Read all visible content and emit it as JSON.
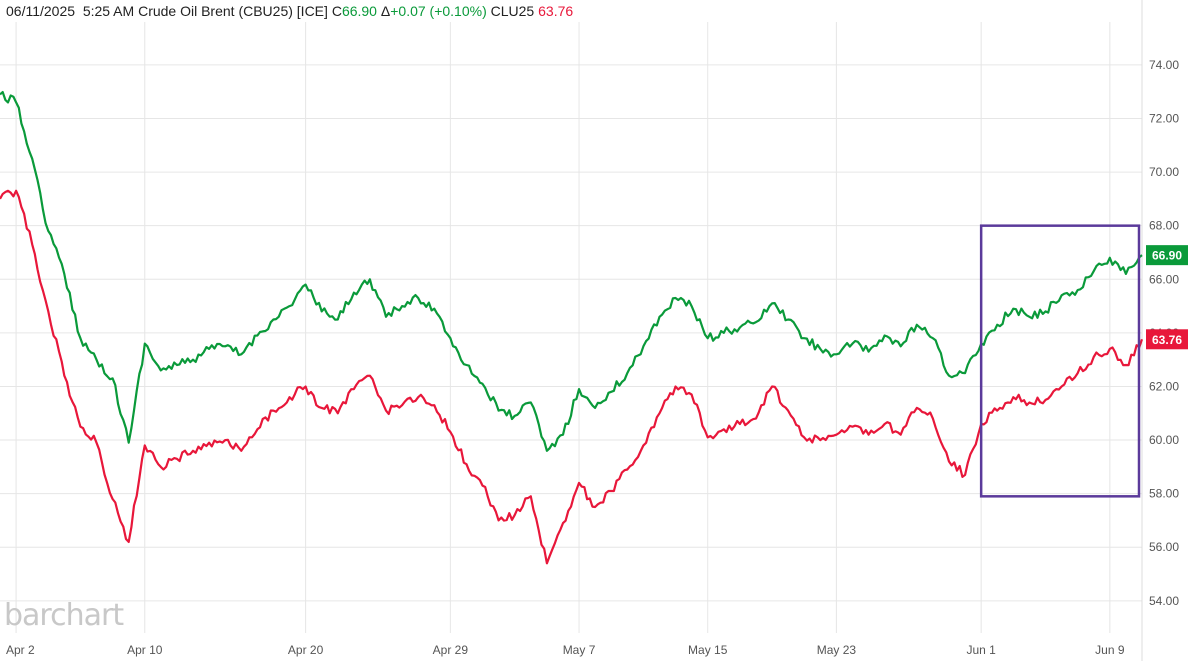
{
  "header": {
    "date": "06/11/2025",
    "time": "5:25 AM",
    "instrument": "Crude Oil Brent (CBU25) [ICE]",
    "close_label": "C",
    "close_value": "66.90",
    "change_label": "Δ",
    "change_value": "+0.07 (+0.10%)",
    "compare_symbol": "CLU25",
    "compare_value": "63.76"
  },
  "watermark": "barchart",
  "colors": {
    "brent": "#0a9a3a",
    "wti": "#e8173a",
    "highlight_box": "#5b3a9b",
    "grid": "#e6e6e6",
    "axis_text": "#555555"
  },
  "chart_data": {
    "type": "line",
    "x_axis": {
      "start_date": "2025-04-01",
      "end_date": "2025-06-11",
      "tick_labels": [
        "Apr 2",
        "Apr 10",
        "Apr 20",
        "Apr 29",
        "May 7",
        "May 15",
        "May 23",
        "Jun 1",
        "Jun 9"
      ],
      "tick_dates": [
        "2025-04-02",
        "2025-04-10",
        "2025-04-20",
        "2025-04-29",
        "2025-05-07",
        "2025-05-15",
        "2025-05-23",
        "2025-06-01",
        "2025-06-09"
      ]
    },
    "y_axis": {
      "range": [
        52.8,
        75.6
      ],
      "position": "right",
      "tick_labels": [
        "54.00",
        "56.00",
        "58.00",
        "60.00",
        "62.00",
        "64.00",
        "66.00",
        "68.00",
        "70.00",
        "72.00",
        "74.00"
      ],
      "tick_values": [
        54,
        56,
        58,
        60,
        62,
        64,
        66,
        68,
        70,
        72,
        74
      ]
    },
    "grid": true,
    "series": [
      {
        "name": "CBU25",
        "color": "#0a9a3a",
        "last_label": "66.90",
        "points": [
          [
            "2025-04-01",
            72.9
          ],
          [
            "2025-04-02",
            72.6
          ],
          [
            "2025-04-03",
            70.5
          ],
          [
            "2025-04-04",
            67.8
          ],
          [
            "2025-04-05",
            66.2
          ],
          [
            "2025-04-06",
            63.8
          ],
          [
            "2025-04-07",
            63.0
          ],
          [
            "2025-04-08",
            62.3
          ],
          [
            "2025-04-09",
            59.9
          ],
          [
            "2025-04-10",
            63.6
          ],
          [
            "2025-04-11",
            62.6
          ],
          [
            "2025-04-12",
            62.8
          ],
          [
            "2025-04-13",
            63.0
          ],
          [
            "2025-04-14",
            63.4
          ],
          [
            "2025-04-15",
            63.5
          ],
          [
            "2025-04-16",
            63.2
          ],
          [
            "2025-04-17",
            63.9
          ],
          [
            "2025-04-18",
            64.5
          ],
          [
            "2025-04-19",
            65.0
          ],
          [
            "2025-04-20",
            65.8
          ],
          [
            "2025-04-21",
            64.8
          ],
          [
            "2025-04-22",
            64.5
          ],
          [
            "2025-04-23",
            65.5
          ],
          [
            "2025-04-24",
            66.0
          ],
          [
            "2025-04-25",
            64.6
          ],
          [
            "2025-04-26",
            65.0
          ],
          [
            "2025-04-27",
            65.3
          ],
          [
            "2025-04-28",
            64.9
          ],
          [
            "2025-04-29",
            63.8
          ],
          [
            "2025-04-30",
            62.8
          ],
          [
            "2025-05-01",
            62.1
          ],
          [
            "2025-05-02",
            61.1
          ],
          [
            "2025-05-03",
            60.9
          ],
          [
            "2025-05-04",
            61.4
          ],
          [
            "2025-05-05",
            59.6
          ],
          [
            "2025-05-06",
            60.2
          ],
          [
            "2025-05-07",
            61.9
          ],
          [
            "2025-05-08",
            61.2
          ],
          [
            "2025-05-09",
            61.8
          ],
          [
            "2025-05-10",
            62.5
          ],
          [
            "2025-05-11",
            63.5
          ],
          [
            "2025-05-12",
            64.6
          ],
          [
            "2025-05-13",
            65.3
          ],
          [
            "2025-05-14",
            65.0
          ],
          [
            "2025-05-15",
            63.8
          ],
          [
            "2025-05-16",
            64.0
          ],
          [
            "2025-05-17",
            64.2
          ],
          [
            "2025-05-18",
            64.4
          ],
          [
            "2025-05-19",
            65.1
          ],
          [
            "2025-05-20",
            64.5
          ],
          [
            "2025-05-21",
            63.8
          ],
          [
            "2025-05-22",
            63.4
          ],
          [
            "2025-05-23",
            63.2
          ],
          [
            "2025-05-24",
            63.6
          ],
          [
            "2025-05-25",
            63.3
          ],
          [
            "2025-05-26",
            63.9
          ],
          [
            "2025-05-27",
            63.5
          ],
          [
            "2025-05-28",
            64.3
          ],
          [
            "2025-05-29",
            63.8
          ],
          [
            "2025-05-30",
            62.4
          ],
          [
            "2025-05-31",
            62.5
          ],
          [
            "2025-06-01",
            63.6
          ],
          [
            "2025-06-02",
            64.3
          ],
          [
            "2025-06-03",
            64.9
          ],
          [
            "2025-06-04",
            64.6
          ],
          [
            "2025-06-05",
            64.8
          ],
          [
            "2025-06-06",
            65.4
          ],
          [
            "2025-06-07",
            65.6
          ],
          [
            "2025-06-08",
            66.3
          ],
          [
            "2025-06-09",
            66.8
          ],
          [
            "2025-06-10",
            66.2
          ],
          [
            "2025-06-11",
            66.9
          ]
        ]
      },
      {
        "name": "CLU25",
        "color": "#e8173a",
        "last_label": "63.76",
        "points": [
          [
            "2025-04-01",
            69.0
          ],
          [
            "2025-04-02",
            69.3
          ],
          [
            "2025-04-03",
            67.3
          ],
          [
            "2025-04-04",
            64.8
          ],
          [
            "2025-04-05",
            62.4
          ],
          [
            "2025-04-06",
            60.5
          ],
          [
            "2025-04-07",
            59.9
          ],
          [
            "2025-04-08",
            57.8
          ],
          [
            "2025-04-09",
            56.2
          ],
          [
            "2025-04-10",
            59.8
          ],
          [
            "2025-04-11",
            59.0
          ],
          [
            "2025-04-12",
            59.3
          ],
          [
            "2025-04-13",
            59.6
          ],
          [
            "2025-04-14",
            59.9
          ],
          [
            "2025-04-15",
            60.0
          ],
          [
            "2025-04-16",
            59.6
          ],
          [
            "2025-04-17",
            60.4
          ],
          [
            "2025-04-18",
            61.1
          ],
          [
            "2025-04-19",
            61.6
          ],
          [
            "2025-04-20",
            62.0
          ],
          [
            "2025-04-21",
            61.2
          ],
          [
            "2025-04-22",
            61.0
          ],
          [
            "2025-04-23",
            61.9
          ],
          [
            "2025-04-24",
            62.4
          ],
          [
            "2025-04-25",
            61.1
          ],
          [
            "2025-04-26",
            61.3
          ],
          [
            "2025-04-27",
            61.6
          ],
          [
            "2025-04-28",
            61.3
          ],
          [
            "2025-04-29",
            60.3
          ],
          [
            "2025-04-30",
            59.1
          ],
          [
            "2025-05-01",
            58.3
          ],
          [
            "2025-05-02",
            57.0
          ],
          [
            "2025-05-03",
            57.2
          ],
          [
            "2025-05-04",
            57.9
          ],
          [
            "2025-05-05",
            55.4
          ],
          [
            "2025-05-06",
            56.9
          ],
          [
            "2025-05-07",
            58.4
          ],
          [
            "2025-05-08",
            57.5
          ],
          [
            "2025-05-09",
            58.1
          ],
          [
            "2025-05-10",
            58.9
          ],
          [
            "2025-05-11",
            59.8
          ],
          [
            "2025-05-12",
            61.0
          ],
          [
            "2025-05-13",
            62.0
          ],
          [
            "2025-05-14",
            61.7
          ],
          [
            "2025-05-15",
            60.1
          ],
          [
            "2025-05-16",
            60.4
          ],
          [
            "2025-05-17",
            60.6
          ],
          [
            "2025-05-18",
            60.8
          ],
          [
            "2025-05-19",
            62.0
          ],
          [
            "2025-05-20",
            61.1
          ],
          [
            "2025-05-21",
            60.1
          ],
          [
            "2025-05-22",
            60.0
          ],
          [
            "2025-05-23",
            60.2
          ],
          [
            "2025-05-24",
            60.5
          ],
          [
            "2025-05-25",
            60.2
          ],
          [
            "2025-05-26",
            60.6
          ],
          [
            "2025-05-27",
            60.2
          ],
          [
            "2025-05-28",
            61.2
          ],
          [
            "2025-05-29",
            60.8
          ],
          [
            "2025-05-30",
            59.2
          ],
          [
            "2025-05-31",
            58.7
          ],
          [
            "2025-06-01",
            60.6
          ],
          [
            "2025-06-02",
            61.1
          ],
          [
            "2025-06-03",
            61.6
          ],
          [
            "2025-06-04",
            61.4
          ],
          [
            "2025-06-05",
            61.5
          ],
          [
            "2025-06-06",
            62.0
          ],
          [
            "2025-06-07",
            62.5
          ],
          [
            "2025-06-08",
            63.1
          ],
          [
            "2025-06-09",
            63.4
          ],
          [
            "2025-06-10",
            62.8
          ],
          [
            "2025-06-11",
            63.76
          ]
        ]
      }
    ],
    "annotations": [
      {
        "type": "rectangle",
        "x_start": "2025-06-01",
        "x_end": "2025-06-11",
        "y_start": 57.9,
        "y_end": 68.0
      }
    ]
  }
}
